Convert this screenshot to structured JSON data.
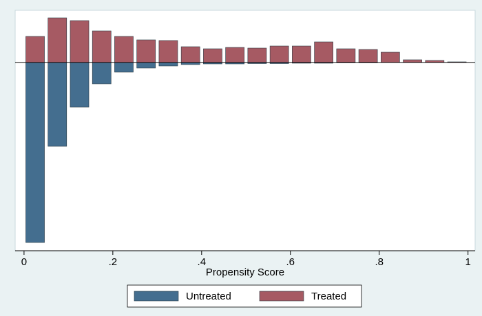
{
  "chart_data": {
    "type": "histogram",
    "xlabel": "Propensity Score",
    "bins": [
      0,
      0.05,
      0.1,
      0.15,
      0.2,
      0.25,
      0.3,
      0.35,
      0.4,
      0.45,
      0.5,
      0.55,
      0.6,
      0.65,
      0.7,
      0.75,
      0.8,
      0.85,
      0.9,
      0.95,
      1
    ],
    "series": [
      {
        "name": "Untreated",
        "color": "#446e8f",
        "values": [
          -262,
          -122,
          -65,
          -31,
          -14,
          -8,
          -5,
          -3,
          -2,
          -2,
          -1.5,
          -1.5,
          -1,
          -1,
          -0.5,
          -0.5,
          0,
          0,
          0,
          0
        ]
      },
      {
        "name": "Treated",
        "color": "#a65a63",
        "values": [
          38,
          65,
          61,
          46,
          38,
          33,
          32,
          23,
          20,
          22,
          21,
          24,
          24,
          30,
          20,
          19,
          15,
          4,
          3,
          1
        ]
      }
    ],
    "xlim": [
      -0.02,
      1.016
    ],
    "ylim": [
      -274,
      76
    ],
    "xticks": [
      0,
      {
        "value": 0.2,
        "label": ".2"
      },
      {
        "value": 0.4,
        "label": ".4"
      },
      {
        "value": 0.6,
        "label": ".6"
      },
      {
        "value": 0.8,
        "label": ".8"
      },
      1
    ],
    "legend": "bottom"
  }
}
